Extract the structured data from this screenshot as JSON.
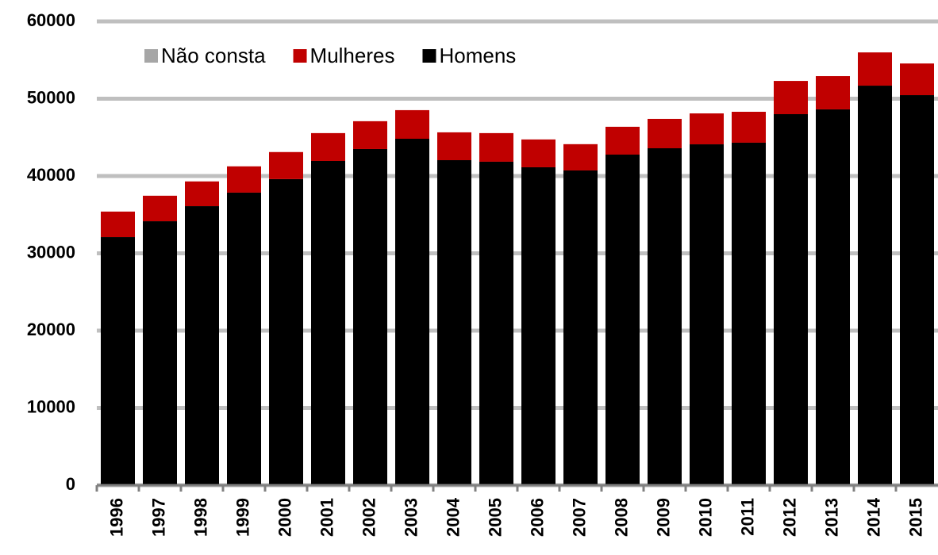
{
  "chart_data": {
    "type": "stacked_bar",
    "categories": [
      "1996",
      "1997",
      "1998",
      "1999",
      "2000",
      "2001",
      "2002",
      "2003",
      "2004",
      "2005",
      "2006",
      "2007",
      "2008",
      "2009",
      "2010",
      "2011",
      "2012",
      "2013",
      "2014",
      "2015"
    ],
    "series": [
      {
        "name": "Não consta",
        "color": "#a6a6a6",
        "values": [
          0,
          0,
          0,
          0,
          0,
          0,
          0,
          0,
          0,
          0,
          0,
          0,
          0,
          0,
          0,
          0,
          0,
          0,
          0,
          0
        ]
      },
      {
        "name": "Mulheres",
        "color": "#c00000",
        "values": [
          3300,
          3300,
          3200,
          3400,
          3500,
          3600,
          3600,
          3700,
          3600,
          3700,
          3600,
          3400,
          3600,
          3800,
          4000,
          4000,
          4300,
          4300,
          4300,
          4100
        ]
      },
      {
        "name": "Homens",
        "color": "#000000",
        "values": [
          32100,
          34150,
          36100,
          37850,
          39600,
          41950,
          43490,
          44820,
          42050,
          41850,
          41130,
          40720,
          42770,
          43590,
          44100,
          44310,
          48000,
          48620,
          51690,
          50460
        ]
      }
    ],
    "ylim": [
      0,
      60000
    ],
    "yticks": [
      0,
      10000,
      20000,
      30000,
      40000,
      50000,
      60000
    ],
    "grid": true,
    "legend": "top"
  }
}
